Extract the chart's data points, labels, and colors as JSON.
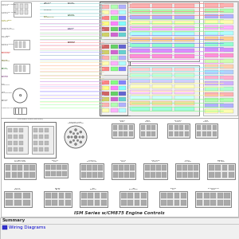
{
  "title": "ISM Series w/CM875 Engine Controls",
  "bg_color": "#ffffff",
  "tab_label": "Summary",
  "tab_item": "Wiring Diagrams",
  "tab_item_color": "#0000cc",
  "tab_bg": "#eeeeff",
  "tab_border": "#aaaaaa",
  "upper_bg": "#ffffff",
  "lower_bg": "#ffffff",
  "wire_colors_upper_left": [
    "#b0e0e0",
    "#b0e0e0",
    "#b0e0e0",
    "#b0e0e0",
    "#b0e0e0",
    "#e0b0e0",
    "#e0b0e0",
    "#e0b0e0",
    "#e0b0e0",
    "#b0e0b0",
    "#b0e0b0",
    "#b0e0b0",
    "#ffb0b0",
    "#ffb0b0",
    "#ffb0b0",
    "#b0b0ff",
    "#b0b0ff",
    "#b0b0ff",
    "#ffe0b0",
    "#ffe0b0",
    "#ffe0b0",
    "#e0e0b0",
    "#e0e0b0",
    "#e0e0b0",
    "#ffb0e0",
    "#ffb0e0",
    "#ffb0e0",
    "#c0b0ff",
    "#c0b0ff",
    "#c0b0ff",
    "#b0ffb0",
    "#b0ffb0",
    "#b0ffb0"
  ],
  "wire_colors_right": [
    "#ff8080",
    "#ff8080",
    "#ff8080",
    "#ff8080",
    "#80ff80",
    "#80ff80",
    "#80ff80",
    "#80ff80",
    "#8080ff",
    "#8080ff",
    "#8080ff",
    "#8080ff",
    "#ff80ff",
    "#ff80ff",
    "#ff80ff",
    "#ff80ff",
    "#80ffff",
    "#80ffff",
    "#80ffff",
    "#80ffff",
    "#ffff80",
    "#ffff80",
    "#ffff80",
    "#ffff80",
    "#80ff80",
    "#80ff80",
    "#80ff80",
    "#80ff80"
  ],
  "ecm_border": "#888888",
  "pin_colors": [
    "#ffaaaa",
    "#aaffaa",
    "#aaaaff",
    "#ffffaa",
    "#ffaaff",
    "#aaffff",
    "#ff7777",
    "#77ff77",
    "#7777ff",
    "#ffff77",
    "#ff77ff",
    "#77ffff",
    "#cc5555",
    "#55cc55",
    "#5555cc",
    "#cccc55",
    "#cc55cc",
    "#55cccc"
  ],
  "connector_fill": "#cccccc",
  "connector_border": "#555555"
}
